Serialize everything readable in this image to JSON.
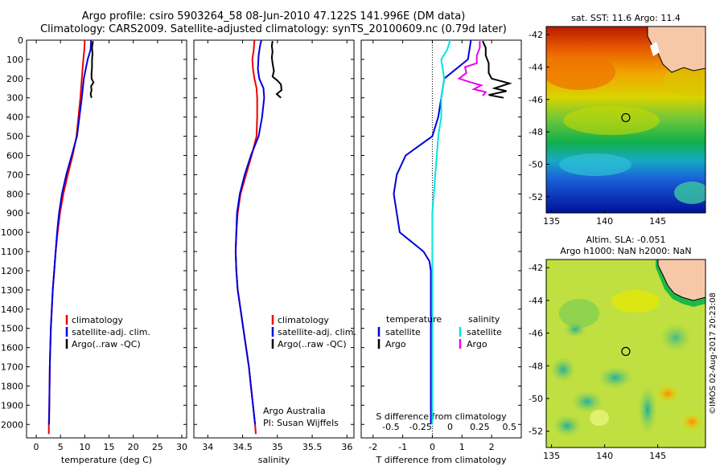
{
  "title_line1": "Argo profile: csiro 5903264_58 08-Jun-2010 47.122S 141.996E (DM data)",
  "title_line2": "Climatology: CARS2009. Satellite-adjusted climatology: synTS_20100609.nc (0.79d later)",
  "chart_data": [
    {
      "type": "line",
      "xlabel": "temperature (deg C)",
      "ylabel": "",
      "xlim": [
        -2,
        31
      ],
      "ylim": [
        0,
        2070
      ],
      "y_reversed": true,
      "xticks": [
        0,
        5,
        10,
        15,
        20,
        25,
        30
      ],
      "yticks": [
        0,
        100,
        200,
        300,
        400,
        500,
        600,
        700,
        800,
        900,
        1000,
        1100,
        1200,
        1300,
        1400,
        1500,
        1600,
        1700,
        1800,
        1900,
        2000
      ],
      "legend": [
        "climatology",
        "satellite-adj. clim.",
        "Argo(..raw -QC)"
      ],
      "series": [
        {
          "name": "climatology",
          "color": "#ee0000",
          "points": [
            [
              10,
              0
            ],
            [
              9.9,
              50
            ],
            [
              9.7,
              100
            ],
            [
              9.4,
              200
            ],
            [
              9.1,
              300
            ],
            [
              8.7,
              400
            ],
            [
              8.3,
              500
            ],
            [
              7.5,
              600
            ],
            [
              6.5,
              700
            ],
            [
              5.6,
              800
            ],
            [
              4.9,
              900
            ],
            [
              4.4,
              1000
            ],
            [
              4.0,
              1100
            ],
            [
              3.7,
              1200
            ],
            [
              3.4,
              1300
            ],
            [
              3.2,
              1400
            ],
            [
              3.0,
              1500
            ],
            [
              2.9,
              1600
            ],
            [
              2.8,
              1700
            ],
            [
              2.75,
              1800
            ],
            [
              2.7,
              1900
            ],
            [
              2.6,
              2000
            ],
            [
              2.6,
              2050
            ]
          ]
        },
        {
          "name": "satellite-adj. clim.",
          "color": "#0000dd",
          "points": [
            [
              11.3,
              0
            ],
            [
              11.2,
              50
            ],
            [
              10.6,
              100
            ],
            [
              9.8,
              200
            ],
            [
              9.4,
              300
            ],
            [
              8.9,
              400
            ],
            [
              8.4,
              500
            ],
            [
              7.3,
              600
            ],
            [
              6.2,
              700
            ],
            [
              5.3,
              800
            ],
            [
              4.7,
              900
            ],
            [
              4.3,
              1000
            ],
            [
              4.0,
              1100
            ],
            [
              3.7,
              1200
            ],
            [
              3.4,
              1300
            ],
            [
              3.2,
              1400
            ],
            [
              3.0,
              1500
            ],
            [
              2.9,
              1600
            ],
            [
              2.8,
              1700
            ],
            [
              2.75,
              1800
            ],
            [
              2.7,
              1900
            ],
            [
              2.65,
              2000
            ]
          ]
        },
        {
          "name": "Argo(..raw -QC)",
          "color": "#000000",
          "points": [
            [
              11.7,
              5
            ],
            [
              11.6,
              20
            ],
            [
              11.5,
              40
            ],
            [
              11.6,
              70
            ],
            [
              11.5,
              100
            ],
            [
              11.5,
              140
            ],
            [
              11.4,
              170
            ],
            [
              11.4,
              200
            ],
            [
              11.8,
              220
            ],
            [
              11.3,
              240
            ],
            [
              11.4,
              260
            ],
            [
              11.2,
              280
            ],
            [
              11.4,
              300
            ]
          ]
        }
      ]
    },
    {
      "type": "line",
      "xlabel": "salinity",
      "ylabel": "",
      "xlim": [
        33.8,
        36.1
      ],
      "ylim": [
        0,
        2070
      ],
      "y_reversed": true,
      "xticks": [
        34,
        34.5,
        35,
        35.5,
        36
      ],
      "legend": [
        "climatology",
        "satellite-adj. clim.",
        "Argo(..raw -QC)"
      ],
      "annotation_lines": [
        "Argo Australia",
        "PI: Susan Wijffels"
      ],
      "series": [
        {
          "name": "climatology",
          "color": "#ee0000",
          "points": [
            [
              34.67,
              0
            ],
            [
              34.66,
              50
            ],
            [
              34.64,
              100
            ],
            [
              34.65,
              150
            ],
            [
              34.67,
              200
            ],
            [
              34.7,
              250
            ],
            [
              34.71,
              300
            ],
            [
              34.71,
              400
            ],
            [
              34.7,
              500
            ],
            [
              34.63,
              600
            ],
            [
              34.55,
              700
            ],
            [
              34.47,
              800
            ],
            [
              34.43,
              900
            ],
            [
              34.41,
              1000
            ],
            [
              34.4,
              1100
            ],
            [
              34.41,
              1200
            ],
            [
              34.43,
              1300
            ],
            [
              34.47,
              1400
            ],
            [
              34.51,
              1500
            ],
            [
              34.55,
              1600
            ],
            [
              34.59,
              1700
            ],
            [
              34.62,
              1800
            ],
            [
              34.65,
              1900
            ],
            [
              34.68,
              2000
            ],
            [
              34.69,
              2050
            ]
          ]
        },
        {
          "name": "satellite-adj. clim.",
          "color": "#0000dd",
          "points": [
            [
              34.77,
              0
            ],
            [
              34.75,
              30
            ],
            [
              34.73,
              80
            ],
            [
              34.72,
              150
            ],
            [
              34.74,
              200
            ],
            [
              34.8,
              250
            ],
            [
              34.81,
              300
            ],
            [
              34.78,
              400
            ],
            [
              34.73,
              500
            ],
            [
              34.62,
              600
            ],
            [
              34.53,
              700
            ],
            [
              34.46,
              800
            ],
            [
              34.42,
              900
            ],
            [
              34.41,
              1000
            ],
            [
              34.4,
              1100
            ],
            [
              34.41,
              1200
            ],
            [
              34.43,
              1300
            ],
            [
              34.47,
              1400
            ],
            [
              34.51,
              1500
            ],
            [
              34.55,
              1600
            ],
            [
              34.59,
              1700
            ],
            [
              34.62,
              1800
            ],
            [
              34.65,
              1900
            ],
            [
              34.68,
              2000
            ]
          ]
        },
        {
          "name": "Argo(..raw -QC)",
          "color": "#000000",
          "points": [
            [
              34.93,
              5
            ],
            [
              34.92,
              30
            ],
            [
              34.93,
              60
            ],
            [
              34.92,
              90
            ],
            [
              34.93,
              120
            ],
            [
              34.95,
              160
            ],
            [
              34.93,
              190
            ],
            [
              35.0,
              210
            ],
            [
              35.05,
              230
            ],
            [
              35.06,
              260
            ],
            [
              34.99,
              280
            ],
            [
              35.05,
              300
            ]
          ]
        }
      ]
    },
    {
      "type": "line",
      "xlabel": "T difference from climatology",
      "top_axis_label": "S difference from climatology",
      "xlim": [
        -2.4,
        3.0
      ],
      "ylim": [
        0,
        2070
      ],
      "y_reversed": true,
      "xticks": [
        -2,
        -1,
        0,
        1,
        2
      ],
      "top_xticks": [
        "-0.5",
        "-0.25",
        "0",
        "0.25",
        "0.5"
      ],
      "legend_left": {
        "heading": "temperature",
        "items": [
          "satellite",
          "Argo"
        ]
      },
      "legend_right": {
        "heading": "salinity",
        "items": [
          "satellite",
          "Argo"
        ]
      },
      "series": [
        {
          "name": "temperature satellite",
          "color": "#0000dd",
          "points": [
            [
              1.3,
              0
            ],
            [
              1.2,
              100
            ],
            [
              0.4,
              200
            ],
            [
              0.3,
              300
            ],
            [
              0.2,
              400
            ],
            [
              0.0,
              500
            ],
            [
              -0.9,
              600
            ],
            [
              -1.2,
              700
            ],
            [
              -1.3,
              800
            ],
            [
              -1.2,
              900
            ],
            [
              -1.1,
              1000
            ],
            [
              -0.3,
              1100
            ],
            [
              -0.1,
              1150
            ],
            [
              -0.05,
              1200
            ],
            [
              -0.05,
              1400
            ],
            [
              -0.05,
              1700
            ],
            [
              -0.05,
              2000
            ]
          ]
        },
        {
          "name": "temperature Argo",
          "color": "#000000",
          "points": [
            [
              1.7,
              5
            ],
            [
              1.8,
              40
            ],
            [
              1.8,
              80
            ],
            [
              1.9,
              120
            ],
            [
              1.9,
              170
            ],
            [
              2.0,
              200
            ],
            [
              2.6,
              225
            ],
            [
              2.1,
              250
            ],
            [
              2.5,
              265
            ],
            [
              1.9,
              285
            ],
            [
              2.4,
              300
            ]
          ]
        },
        {
          "name": "salinity satellite",
          "color": "#00e5e5",
          "points": [
            [
              0.6,
              0
            ],
            [
              0.5,
              50
            ],
            [
              0.3,
              100
            ],
            [
              0.4,
              200
            ],
            [
              0.35,
              250
            ],
            [
              0.3,
              300
            ],
            [
              0.3,
              400
            ],
            [
              0.2,
              500
            ],
            [
              0.15,
              600
            ],
            [
              0.1,
              700
            ],
            [
              0.05,
              800
            ],
            [
              0.0,
              900
            ],
            [
              0.0,
              1000
            ],
            [
              0.0,
              1200
            ],
            [
              0.0,
              1400
            ],
            [
              0.0,
              1700
            ],
            [
              0.0,
              2000
            ]
          ]
        },
        {
          "name": "salinity Argo",
          "color": "#ee00ee",
          "points": [
            [
              1.6,
              5
            ],
            [
              1.6,
              40
            ],
            [
              1.5,
              80
            ],
            [
              1.5,
              120
            ],
            [
              1.1,
              140
            ],
            [
              1.15,
              170
            ],
            [
              0.9,
              200
            ],
            [
              1.3,
              220
            ],
            [
              1.65,
              235
            ],
            [
              1.4,
              255
            ],
            [
              1.8,
              270
            ],
            [
              1.7,
              290
            ]
          ]
        }
      ]
    },
    {
      "type": "heatmap",
      "title": "sat. SST: 11.6 Argo: 11.4",
      "xticks": [
        135,
        140,
        145
      ],
      "yticks": [
        -42,
        -44,
        -46,
        -48,
        -50,
        -52
      ],
      "xlim": [
        134.5,
        149.5
      ],
      "ylim": [
        -53,
        -41.5
      ],
      "marker": {
        "lon": 141.996,
        "lat": -47.122
      }
    },
    {
      "type": "heatmap",
      "title_line1": "Altim. SLA: -0.051",
      "title_line2": "Argo h1000: NaN h2000: NaN",
      "xticks": [
        135,
        140,
        145
      ],
      "yticks": [
        -42,
        -44,
        -46,
        -48,
        -50,
        -52
      ],
      "xlim": [
        134.5,
        149.5
      ],
      "ylim": [
        -53,
        -41.5
      ],
      "marker": {
        "lon": 141.996,
        "lat": -47.122
      }
    }
  ],
  "stamp": "©IMOS 02-Aug-2017 20:23:08"
}
